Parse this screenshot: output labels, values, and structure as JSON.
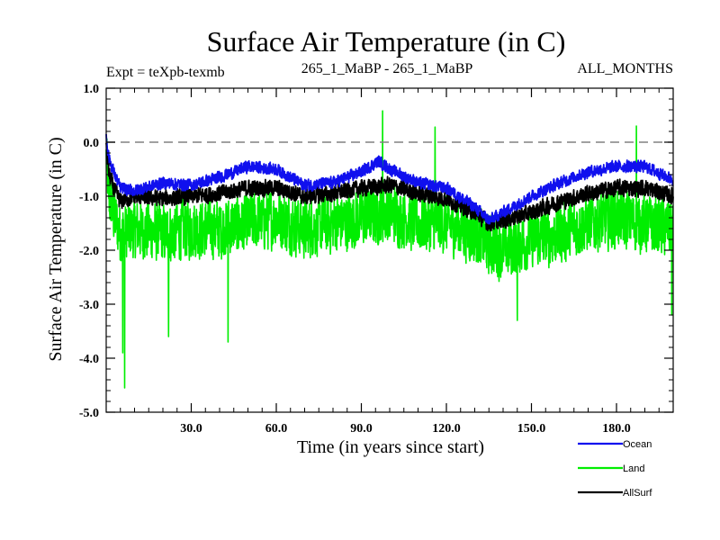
{
  "chart_data": {
    "type": "line",
    "title": "Surface Air Temperature (in C)",
    "subtitle_left": "Expt = teXpb-texmb",
    "subtitle_center": "265_1_MaBP - 265_1_MaBP",
    "subtitle_right": "ALL_MONTHS",
    "xlabel": "Time (in years since start)",
    "ylabel": "Surface Air Temperature (in C)",
    "xlim": [
      0,
      200
    ],
    "ylim": [
      -5.0,
      1.0
    ],
    "x_ticks": [
      30,
      60,
      90,
      120,
      150,
      180
    ],
    "x_tick_labels": [
      "30.0",
      "60.0",
      "90.0",
      "120.0",
      "150.0",
      "180.0"
    ],
    "y_ticks": [
      1.0,
      0.0,
      -1.0,
      -2.0,
      -3.0,
      -4.0,
      -5.0
    ],
    "y_tick_labels": [
      "1.0",
      "0.0",
      "-1.0",
      "-2.0",
      "-3.0",
      "-4.0",
      "-5.0"
    ],
    "zero_line": 0.0,
    "samples_per_year": 12,
    "series": [
      {
        "name": "Land",
        "color": "#00ee00",
        "x": [
          0,
          1,
          3,
          5,
          10,
          20,
          30,
          40,
          50,
          60,
          70,
          80,
          90,
          100,
          110,
          120,
          130,
          135,
          140,
          150,
          160,
          170,
          180,
          190,
          200
        ],
        "mean": [
          -0.3,
          -1.0,
          -1.4,
          -1.7,
          -1.6,
          -1.7,
          -1.6,
          -1.6,
          -1.5,
          -1.4,
          -1.6,
          -1.5,
          -1.4,
          -1.3,
          -1.5,
          -1.5,
          -1.7,
          -1.9,
          -2.0,
          -1.8,
          -1.7,
          -1.5,
          -1.4,
          -1.5,
          -1.6
        ],
        "noise_amplitude": 0.65,
        "spikes": [
          {
            "x": 6.5,
            "y": -4.55
          },
          {
            "x": 5.8,
            "y": -3.9
          },
          {
            "x": 22,
            "y": -3.6
          },
          {
            "x": 43,
            "y": -3.7
          },
          {
            "x": 145,
            "y": -3.3
          },
          {
            "x": 97.5,
            "y": 0.58
          },
          {
            "x": 116,
            "y": 0.28
          },
          {
            "x": 187,
            "y": 0.3
          },
          {
            "x": 199.5,
            "y": -3.2
          }
        ]
      },
      {
        "name": "AllSurf",
        "color": "#000000",
        "x": [
          0,
          1,
          3,
          5,
          10,
          20,
          30,
          40,
          50,
          60,
          70,
          80,
          90,
          100,
          110,
          120,
          130,
          135,
          140,
          150,
          160,
          170,
          180,
          190,
          200
        ],
        "mean": [
          0.0,
          -0.6,
          -0.9,
          -1.1,
          -1.0,
          -1.05,
          -1.0,
          -0.95,
          -0.85,
          -0.85,
          -1.0,
          -0.95,
          -0.85,
          -0.8,
          -0.95,
          -1.05,
          -1.3,
          -1.5,
          -1.45,
          -1.3,
          -1.1,
          -0.95,
          -0.85,
          -0.85,
          -1.0
        ],
        "noise_amplitude": 0.18
      },
      {
        "name": "Ocean",
        "color": "#1010ee",
        "x": [
          0,
          1,
          3,
          5,
          10,
          20,
          30,
          40,
          50,
          60,
          70,
          80,
          90,
          96,
          100,
          110,
          120,
          130,
          135,
          140,
          150,
          160,
          170,
          180,
          190,
          200
        ],
        "mean": [
          0.1,
          -0.3,
          -0.6,
          -0.85,
          -0.9,
          -0.75,
          -0.8,
          -0.65,
          -0.45,
          -0.5,
          -0.8,
          -0.75,
          -0.55,
          -0.35,
          -0.5,
          -0.75,
          -0.85,
          -1.2,
          -1.45,
          -1.3,
          -1.0,
          -0.75,
          -0.55,
          -0.45,
          -0.45,
          -0.7
        ],
        "noise_amplitude": 0.13
      }
    ],
    "legend_position": "below-right"
  }
}
